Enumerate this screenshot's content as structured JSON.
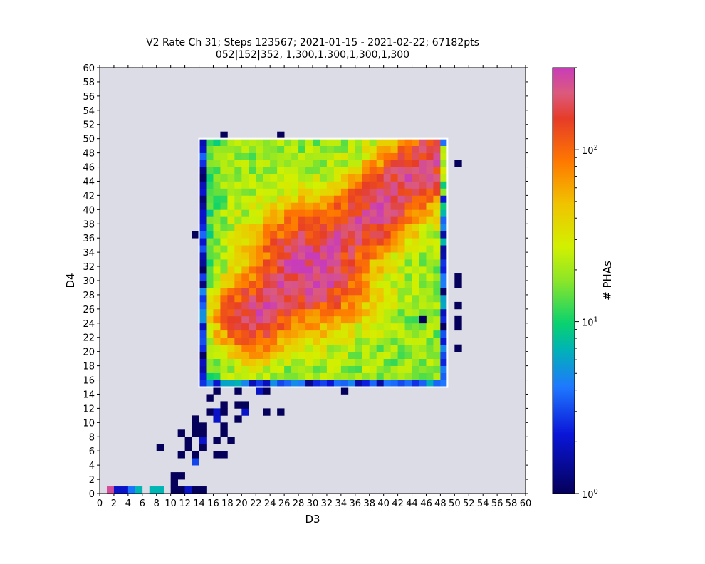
{
  "chart_data": {
    "type": "heatmap",
    "title": "V2 Rate Ch 31; Steps 123567; 2021-01-15 - 2021-02-22; 67182pts",
    "subtitle": "052|152|352, 1,300,1,300,1,300,1,300",
    "xlabel": "D3",
    "ylabel": "D4",
    "xlim": [
      0,
      60
    ],
    "ylim": [
      0,
      60
    ],
    "x_ticks": [
      "0",
      "2",
      "4",
      "6",
      "8",
      "10",
      "12",
      "14",
      "16",
      "18",
      "20",
      "22",
      "24",
      "26",
      "28",
      "30",
      "32",
      "34",
      "36",
      "38",
      "40",
      "42",
      "44",
      "46",
      "48",
      "50",
      "52",
      "54",
      "56",
      "58",
      "60"
    ],
    "y_ticks": [
      "0",
      "2",
      "4",
      "6",
      "8",
      "10",
      "12",
      "14",
      "16",
      "18",
      "20",
      "22",
      "24",
      "26",
      "28",
      "30",
      "32",
      "34",
      "36",
      "38",
      "40",
      "42",
      "44",
      "46",
      "48",
      "50",
      "52",
      "54",
      "56",
      "58",
      "60"
    ],
    "colorbar": {
      "label": "# PHAs",
      "scale": "log",
      "range": [
        1,
        300
      ],
      "tick_labels": [
        "10^0",
        "10^1",
        "10^2"
      ],
      "tick_values": [
        1,
        10,
        100
      ]
    },
    "background_color": "#dcdce6",
    "overlay_box": {
      "x": [
        14,
        49
      ],
      "y": [
        15,
        50
      ],
      "color": "#ffffff"
    },
    "grid": false,
    "structure": {
      "dense_region": {
        "x": [
          14,
          49
        ],
        "y": [
          15,
          50
        ],
        "typical_counts": [
          8,
          40
        ]
      },
      "ridge": {
        "from": [
          25,
          28
        ],
        "to": [
          48,
          48
        ],
        "peak_counts": 260
      },
      "peak": {
        "x": 30,
        "y": 32,
        "counts": 260
      }
    },
    "sparse_cells": [
      {
        "x": 1,
        "y": 0,
        "v": 250
      },
      {
        "x": 2,
        "y": 0,
        "v": 2
      },
      {
        "x": 3,
        "y": 0,
        "v": 2
      },
      {
        "x": 4,
        "y": 0,
        "v": 4
      },
      {
        "x": 5,
        "y": 0,
        "v": 7
      },
      {
        "x": 7,
        "y": 0,
        "v": 7
      },
      {
        "x": 8,
        "y": 0,
        "v": 7
      },
      {
        "x": 10,
        "y": 0,
        "v": 1
      },
      {
        "x": 11,
        "y": 0,
        "v": 1
      },
      {
        "x": 12,
        "y": 0,
        "v": 2
      },
      {
        "x": 13,
        "y": 0,
        "v": 1
      },
      {
        "x": 14,
        "y": 0,
        "v": 1
      },
      {
        "x": 10,
        "y": 1,
        "v": 1
      },
      {
        "x": 10,
        "y": 2,
        "v": 1
      },
      {
        "x": 11,
        "y": 2,
        "v": 1
      },
      {
        "x": 13,
        "y": 4,
        "v": 3
      },
      {
        "x": 11,
        "y": 5,
        "v": 1
      },
      {
        "x": 13,
        "y": 5,
        "v": 1
      },
      {
        "x": 16,
        "y": 5,
        "v": 1
      },
      {
        "x": 17,
        "y": 5,
        "v": 1
      },
      {
        "x": 8,
        "y": 6,
        "v": 1
      },
      {
        "x": 12,
        "y": 6,
        "v": 1
      },
      {
        "x": 14,
        "y": 6,
        "v": 1
      },
      {
        "x": 12,
        "y": 7,
        "v": 1
      },
      {
        "x": 14,
        "y": 7,
        "v": 2
      },
      {
        "x": 16,
        "y": 7,
        "v": 1
      },
      {
        "x": 18,
        "y": 7,
        "v": 1
      },
      {
        "x": 11,
        "y": 8,
        "v": 1
      },
      {
        "x": 13,
        "y": 8,
        "v": 1
      },
      {
        "x": 14,
        "y": 8,
        "v": 1
      },
      {
        "x": 17,
        "y": 8,
        "v": 1
      },
      {
        "x": 13,
        "y": 9,
        "v": 1
      },
      {
        "x": 14,
        "y": 9,
        "v": 1
      },
      {
        "x": 17,
        "y": 9,
        "v": 1
      },
      {
        "x": 13,
        "y": 10,
        "v": 1
      },
      {
        "x": 16,
        "y": 10,
        "v": 2
      },
      {
        "x": 19,
        "y": 10,
        "v": 1
      },
      {
        "x": 15,
        "y": 11,
        "v": 1
      },
      {
        "x": 16,
        "y": 11,
        "v": 2
      },
      {
        "x": 17,
        "y": 11,
        "v": 1
      },
      {
        "x": 20,
        "y": 11,
        "v": 2
      },
      {
        "x": 23,
        "y": 11,
        "v": 1
      },
      {
        "x": 25,
        "y": 11,
        "v": 1
      },
      {
        "x": 17,
        "y": 12,
        "v": 1
      },
      {
        "x": 19,
        "y": 12,
        "v": 1
      },
      {
        "x": 20,
        "y": 12,
        "v": 1
      },
      {
        "x": 15,
        "y": 13,
        "v": 1
      },
      {
        "x": 16,
        "y": 14,
        "v": 1
      },
      {
        "x": 19,
        "y": 14,
        "v": 1
      },
      {
        "x": 22,
        "y": 14,
        "v": 2
      },
      {
        "x": 23,
        "y": 14,
        "v": 1
      },
      {
        "x": 34,
        "y": 14,
        "v": 1
      },
      {
        "x": 13,
        "y": 36,
        "v": 1
      },
      {
        "x": 17,
        "y": 50,
        "v": 1
      },
      {
        "x": 25,
        "y": 50,
        "v": 1
      },
      {
        "x": 50,
        "y": 46,
        "v": 1
      },
      {
        "x": 50,
        "y": 30,
        "v": 1
      },
      {
        "x": 50,
        "y": 29,
        "v": 1
      },
      {
        "x": 50,
        "y": 26,
        "v": 1
      },
      {
        "x": 50,
        "y": 24,
        "v": 1
      },
      {
        "x": 50,
        "y": 23,
        "v": 1
      },
      {
        "x": 50,
        "y": 20,
        "v": 1
      },
      {
        "x": 48,
        "y": 23,
        "v": 1
      },
      {
        "x": 45,
        "y": 24,
        "v": 1
      }
    ]
  }
}
